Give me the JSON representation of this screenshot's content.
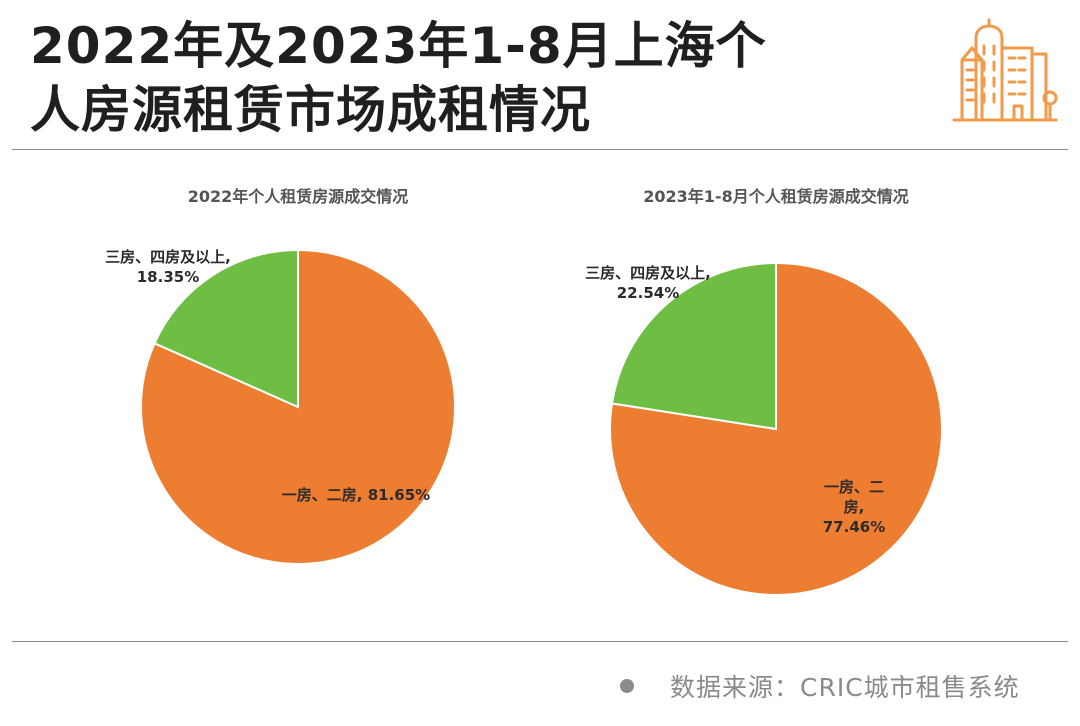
{
  "header": {
    "title_line1": "2022年及2023年1-8月上海个",
    "title_line2": "人房源租赁市场成租情况",
    "logo_icon": "building-icon",
    "logo_color": "#F29A4A"
  },
  "chart_data": [
    {
      "type": "pie",
      "title": "2022年个人租赁房源成交情况",
      "start": "12 o'clock",
      "direction": "clockwise",
      "slices": [
        {
          "label": "一房、二房, 81.65%",
          "value": 81.65,
          "color": "#ED7D31"
        },
        {
          "label": "三房、四房及以上, 18.35%",
          "value": 18.35,
          "color": "#6FBE44"
        }
      ]
    },
    {
      "type": "pie",
      "title": "2023年1-8月个人租赁房源成交情况",
      "start": "12 o'clock",
      "direction": "clockwise",
      "slices": [
        {
          "label": "一房、二房, 77.46%",
          "value": 77.46,
          "color": "#ED7D31"
        },
        {
          "label": "三房、四房及以上, 22.54%",
          "value": 22.54,
          "color": "#6FBE44"
        }
      ]
    }
  ],
  "footer": {
    "source": "数据来源：CRIC城市租售系统"
  }
}
